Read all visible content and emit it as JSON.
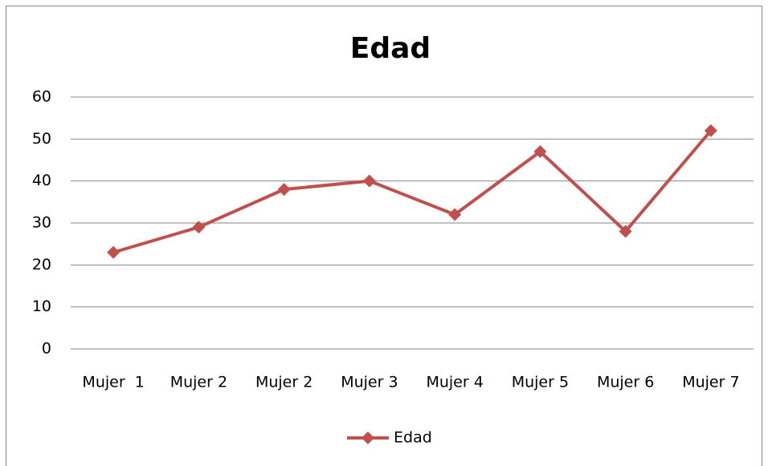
{
  "chart_data": {
    "type": "line",
    "title": "Edad",
    "categories": [
      "Mujer  1",
      "Mujer 2",
      "Mujer 2",
      "Mujer 3",
      "Mujer 4",
      "Mujer 5",
      "Mujer 6",
      "Mujer 7"
    ],
    "series": [
      {
        "name": "Edad",
        "color": "#c0504d",
        "values": [
          23,
          29,
          38,
          40,
          32,
          47,
          28,
          52
        ]
      }
    ],
    "ylim": [
      0,
      60
    ],
    "yticks": [
      0,
      10,
      20,
      30,
      40,
      50,
      60
    ],
    "grid": true,
    "legend": "bottom"
  }
}
